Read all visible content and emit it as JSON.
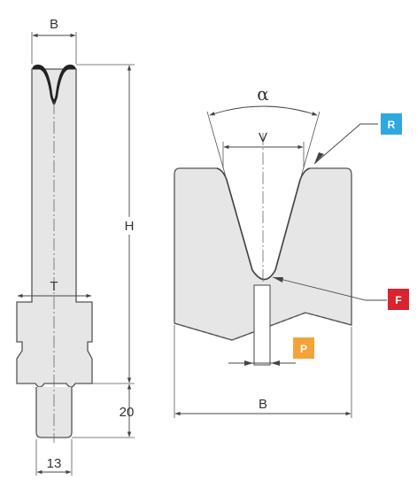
{
  "left_die": {
    "width_label": "B",
    "height_label": "H",
    "tang_width_label": "T",
    "tang_height_label": "20",
    "tang_base_label": "13"
  },
  "right_die": {
    "angle_label": "α",
    "opening_label": "V",
    "base_width_label": "B"
  },
  "badges": {
    "R": {
      "label": "R",
      "color": "#2ea8df"
    },
    "F": {
      "label": "F",
      "color": "#d9232e"
    },
    "P": {
      "label": "P",
      "color": "#f4a23a"
    }
  },
  "colors": {
    "die_fill": "#e6e6e6",
    "outline": "#555555",
    "tip_fill": "#222222"
  }
}
